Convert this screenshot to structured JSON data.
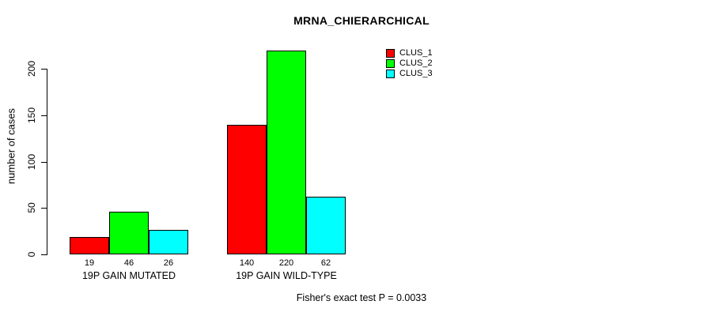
{
  "page": {
    "background_color": "#ffffff",
    "text_color": "#000000"
  },
  "chart_data": {
    "type": "bar",
    "title": "MRNA_CHIERARCHICAL",
    "ylabel": "number of cases",
    "xlabel": "",
    "yticks": [
      0,
      50,
      100,
      150,
      200
    ],
    "ylim": [
      0,
      235
    ],
    "grid": false,
    "legend_position": "top-right",
    "categories": [
      "19P GAIN MUTATED",
      "19P GAIN WILD-TYPE"
    ],
    "series": [
      {
        "name": "CLUS_1",
        "color": "#ff0000",
        "values": [
          19,
          140
        ]
      },
      {
        "name": "CLUS_2",
        "color": "#00ff00",
        "values": [
          46,
          220
        ]
      },
      {
        "name": "CLUS_3",
        "color": "#00ffff",
        "values": [
          26,
          62
        ]
      }
    ],
    "bar_value_labels_shown": true,
    "bar_border_color": "#000000",
    "axis_color": "#000000",
    "annotation": "Fisher's exact test P = 0.0033"
  }
}
